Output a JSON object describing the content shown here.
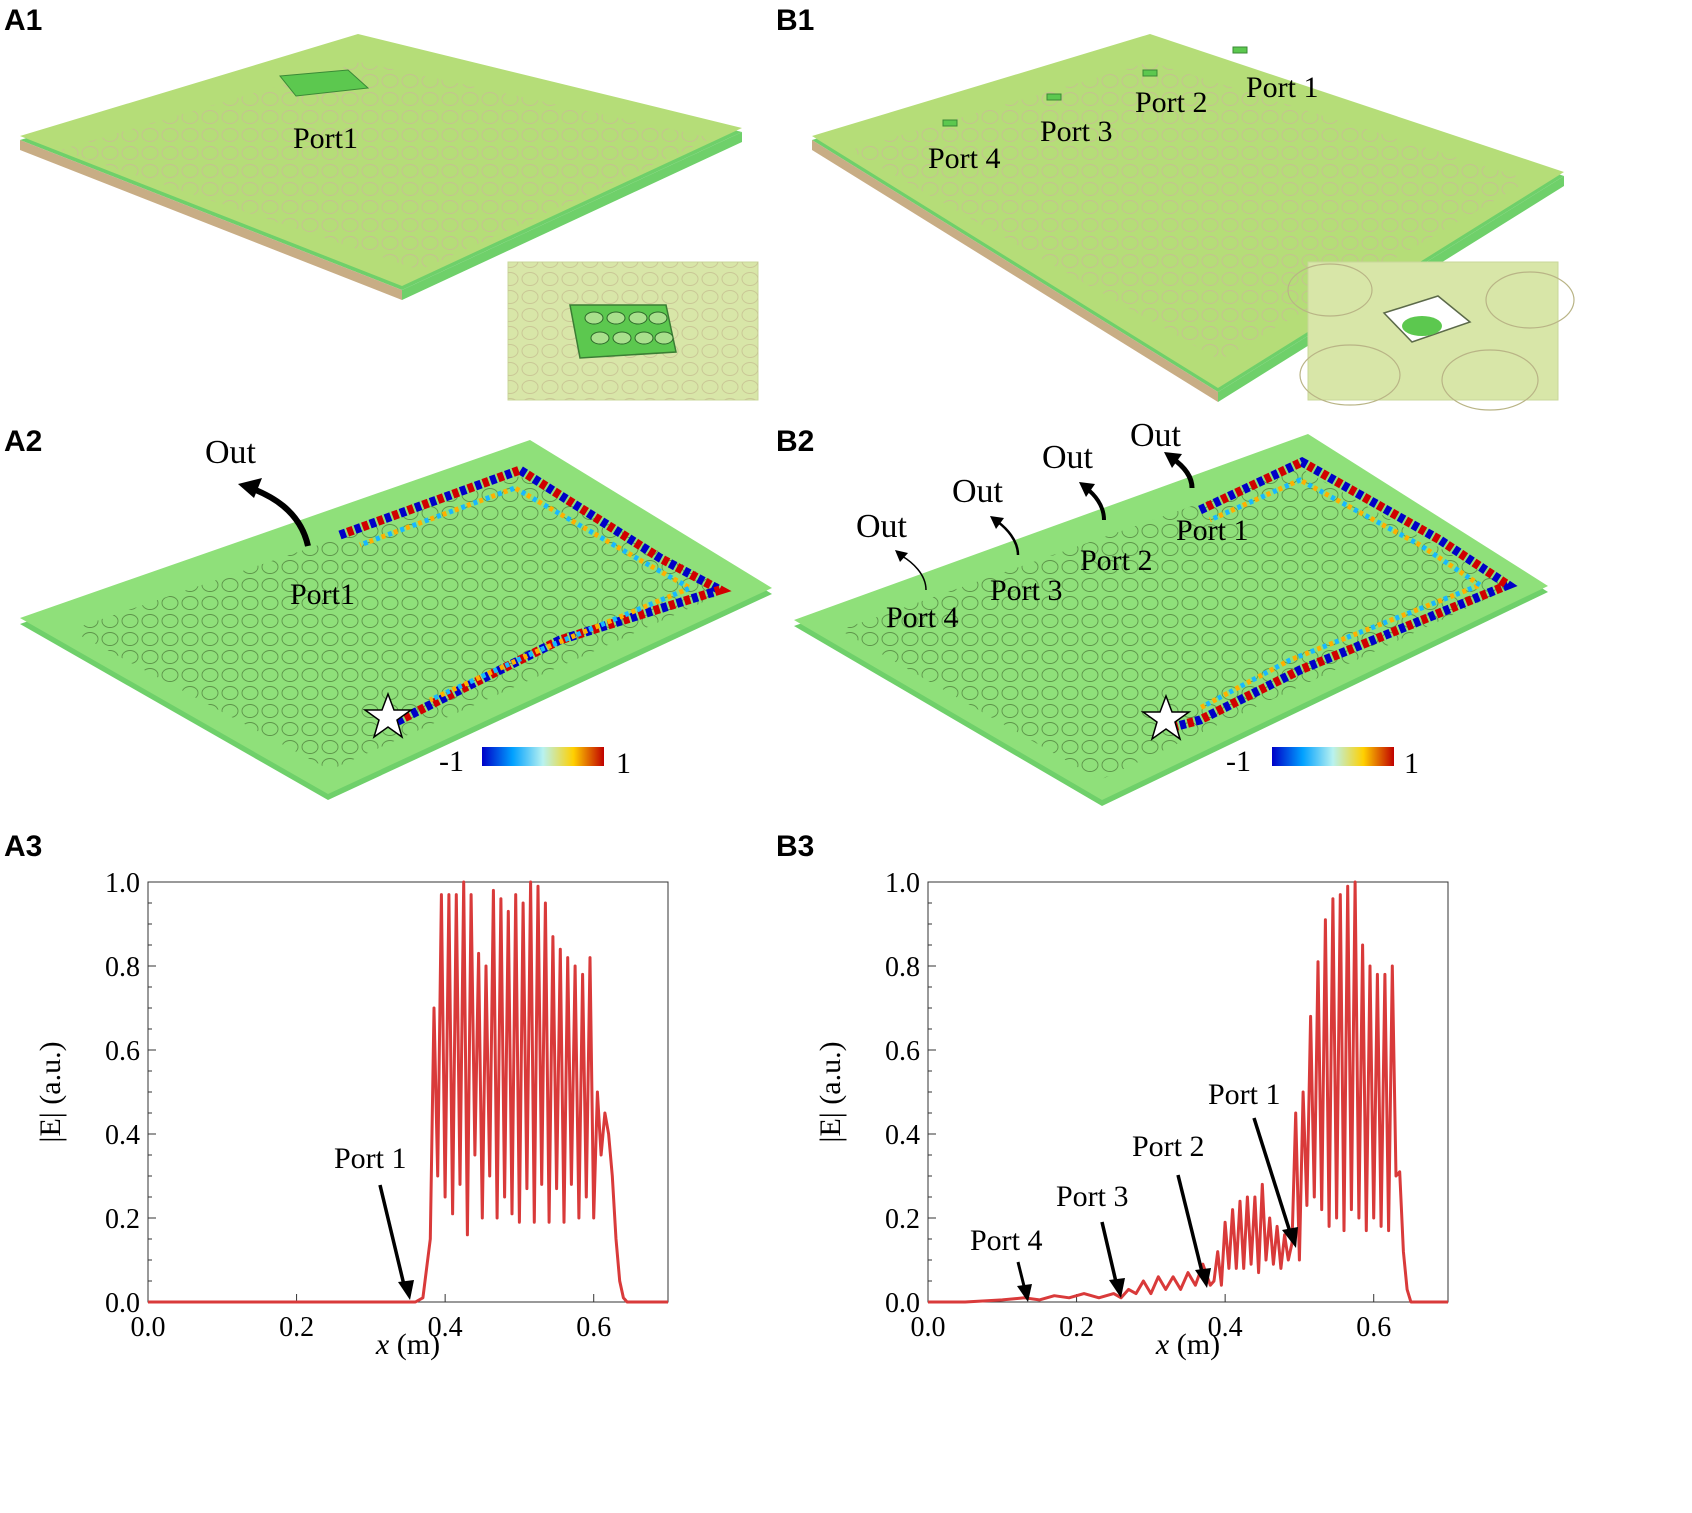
{
  "panels": {
    "a1": "A1",
    "b1": "B1",
    "a2": "A2",
    "b2": "B2",
    "a3": "A3",
    "b3": "B3"
  },
  "device_labels": {
    "a1_port": "Port1",
    "b1_ports": [
      "Port 1",
      "Port 2",
      "Port 3",
      "Port 4"
    ],
    "a2_port": "Port1",
    "a2_out": "Out",
    "b2_ports": [
      "Port 1",
      "Port 2",
      "Port 3",
      "Port 4"
    ],
    "b2_out": "Out"
  },
  "colorbar": {
    "min_label": "-1",
    "max_label": "1"
  },
  "colors": {
    "plate": "#b5dd78",
    "plate_side": "#6fd06a",
    "curve": "#d93a3a"
  },
  "chart_data": [
    {
      "id": "A3",
      "type": "line",
      "xlabel_var": "x",
      "xlabel_unit": " (m)",
      "ylabel": "|E| (a.u.)",
      "xlim": [
        0.0,
        0.7
      ],
      "ylim": [
        0.0,
        1.0
      ],
      "xticks": [
        "0.0",
        "0.2",
        "0.4",
        "0.6"
      ],
      "yticks": [
        "0.0",
        "0.2",
        "0.4",
        "0.6",
        "0.8",
        "1.0"
      ],
      "series": [
        {
          "name": "|E|",
          "x": [
            0.0,
            0.36,
            0.37,
            0.38,
            0.385,
            0.39,
            0.395,
            0.4,
            0.405,
            0.41,
            0.415,
            0.42,
            0.425,
            0.43,
            0.435,
            0.44,
            0.445,
            0.45,
            0.455,
            0.46,
            0.465,
            0.47,
            0.475,
            0.48,
            0.485,
            0.49,
            0.495,
            0.5,
            0.505,
            0.51,
            0.515,
            0.52,
            0.525,
            0.53,
            0.535,
            0.54,
            0.545,
            0.55,
            0.555,
            0.56,
            0.565,
            0.57,
            0.575,
            0.58,
            0.585,
            0.59,
            0.595,
            0.6,
            0.605,
            0.61,
            0.615,
            0.62,
            0.625,
            0.63,
            0.635,
            0.64,
            0.645,
            0.65,
            0.66,
            0.7
          ],
          "y": [
            0.0,
            0.0,
            0.01,
            0.15,
            0.7,
            0.3,
            0.97,
            0.25,
            0.97,
            0.21,
            0.97,
            0.28,
            1.0,
            0.16,
            0.97,
            0.35,
            0.83,
            0.2,
            0.8,
            0.3,
            0.98,
            0.2,
            0.96,
            0.25,
            0.93,
            0.21,
            0.97,
            0.19,
            0.95,
            0.27,
            1.0,
            0.19,
            0.99,
            0.28,
            0.95,
            0.19,
            0.87,
            0.27,
            0.84,
            0.19,
            0.82,
            0.28,
            0.8,
            0.2,
            0.78,
            0.25,
            0.82,
            0.2,
            0.5,
            0.35,
            0.45,
            0.4,
            0.3,
            0.15,
            0.05,
            0.01,
            0.0,
            0.0,
            0.0,
            0.0
          ]
        }
      ],
      "annotations": [
        {
          "text": "Port 1",
          "x": 0.36,
          "y": 0.0
        }
      ]
    },
    {
      "id": "B3",
      "type": "line",
      "xlabel_var": "x",
      "xlabel_unit": " (m)",
      "ylabel": "|E| (a.u.)",
      "xlim": [
        0.0,
        0.7
      ],
      "ylim": [
        0.0,
        1.0
      ],
      "xticks": [
        "0.0",
        "0.2",
        "0.4",
        "0.6"
      ],
      "yticks": [
        "0.0",
        "0.2",
        "0.4",
        "0.6",
        "0.8",
        "1.0"
      ],
      "series": [
        {
          "name": "|E|",
          "x": [
            0.0,
            0.05,
            0.1,
            0.13,
            0.15,
            0.17,
            0.19,
            0.21,
            0.23,
            0.25,
            0.26,
            0.27,
            0.28,
            0.29,
            0.3,
            0.31,
            0.32,
            0.33,
            0.34,
            0.35,
            0.36,
            0.37,
            0.38,
            0.385,
            0.39,
            0.395,
            0.4,
            0.405,
            0.41,
            0.415,
            0.42,
            0.425,
            0.43,
            0.435,
            0.44,
            0.445,
            0.45,
            0.455,
            0.46,
            0.465,
            0.47,
            0.475,
            0.48,
            0.485,
            0.49,
            0.495,
            0.5,
            0.505,
            0.51,
            0.515,
            0.52,
            0.525,
            0.53,
            0.535,
            0.54,
            0.545,
            0.55,
            0.555,
            0.56,
            0.565,
            0.57,
            0.575,
            0.58,
            0.585,
            0.59,
            0.595,
            0.6,
            0.605,
            0.61,
            0.615,
            0.62,
            0.625,
            0.63,
            0.635,
            0.64,
            0.645,
            0.65,
            0.66,
            0.7
          ],
          "y": [
            0.0,
            0.0,
            0.005,
            0.01,
            0.005,
            0.015,
            0.01,
            0.02,
            0.01,
            0.02,
            0.01,
            0.03,
            0.02,
            0.05,
            0.02,
            0.06,
            0.03,
            0.06,
            0.03,
            0.07,
            0.04,
            0.09,
            0.04,
            0.05,
            0.12,
            0.04,
            0.19,
            0.08,
            0.22,
            0.08,
            0.24,
            0.08,
            0.25,
            0.09,
            0.25,
            0.07,
            0.28,
            0.1,
            0.2,
            0.09,
            0.18,
            0.08,
            0.16,
            0.1,
            0.14,
            0.45,
            0.1,
            0.5,
            0.23,
            0.68,
            0.25,
            0.81,
            0.22,
            0.91,
            0.18,
            0.96,
            0.2,
            0.97,
            0.17,
            0.99,
            0.22,
            1.0,
            0.2,
            0.85,
            0.17,
            0.8,
            0.2,
            0.78,
            0.18,
            0.78,
            0.17,
            0.8,
            0.3,
            0.31,
            0.12,
            0.03,
            0.0,
            0.0,
            0.0
          ]
        }
      ],
      "annotations": [
        {
          "text": "Port 1",
          "x": 0.49,
          "y": 0.11
        },
        {
          "text": "Port 2",
          "x": 0.37,
          "y": 0.03
        },
        {
          "text": "Port 3",
          "x": 0.26,
          "y": 0.01
        },
        {
          "text": "Port 4",
          "x": 0.13,
          "y": 0.0
        }
      ]
    }
  ]
}
